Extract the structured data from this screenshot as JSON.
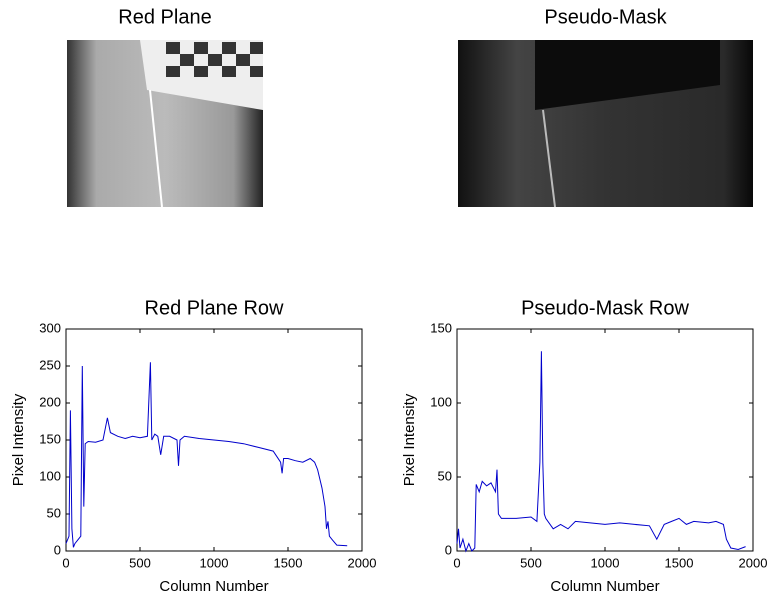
{
  "chart_data": [
    {
      "type": "image",
      "title": "Red Plane"
    },
    {
      "type": "image",
      "title": "Pseudo-Mask"
    },
    {
      "type": "line",
      "title": "Red Plane Row",
      "xlabel": "Column Number",
      "ylabel": "Pixel Intensity",
      "color": "#0000cc",
      "x": [
        0,
        20,
        30,
        40,
        50,
        60,
        80,
        100,
        110,
        120,
        130,
        150,
        200,
        250,
        280,
        300,
        350,
        400,
        450,
        500,
        550,
        570,
        580,
        600,
        620,
        640,
        660,
        700,
        750,
        760,
        770,
        800,
        900,
        1000,
        1100,
        1200,
        1300,
        1400,
        1450,
        1460,
        1470,
        1500,
        1550,
        1600,
        1650,
        1680,
        1700,
        1730,
        1750,
        1760,
        1770,
        1780,
        1800,
        1830,
        1900
      ],
      "values": [
        10,
        20,
        190,
        30,
        5,
        10,
        15,
        20,
        250,
        60,
        145,
        148,
        147,
        150,
        180,
        160,
        155,
        152,
        155,
        153,
        155,
        255,
        150,
        158,
        155,
        130,
        155,
        155,
        150,
        115,
        150,
        155,
        152,
        150,
        148,
        145,
        140,
        135,
        120,
        105,
        125,
        125,
        122,
        120,
        125,
        120,
        110,
        85,
        60,
        30,
        40,
        20,
        15,
        8,
        7
      ],
      "xlim": [
        0,
        2000
      ],
      "ylim": [
        0,
        300
      ],
      "xticks": [
        0,
        500,
        1000,
        1500,
        2000
      ],
      "yticks": [
        0,
        50,
        100,
        150,
        200,
        250,
        300
      ]
    },
    {
      "type": "line",
      "title": "Pseudo-Mask Row",
      "xlabel": "Column Number",
      "ylabel": "Pixel Intensity",
      "color": "#0000cc",
      "x": [
        0,
        10,
        20,
        40,
        60,
        80,
        100,
        120,
        130,
        150,
        170,
        200,
        230,
        260,
        270,
        280,
        300,
        400,
        500,
        540,
        560,
        570,
        580,
        590,
        600,
        650,
        700,
        750,
        800,
        900,
        1000,
        1100,
        1200,
        1300,
        1350,
        1400,
        1450,
        1500,
        1550,
        1600,
        1700,
        1750,
        1800,
        1820,
        1850,
        1900,
        1950
      ],
      "values": [
        5,
        15,
        2,
        8,
        0,
        5,
        0,
        2,
        45,
        40,
        47,
        44,
        46,
        40,
        55,
        25,
        22,
        22,
        23,
        20,
        60,
        135,
        60,
        25,
        22,
        15,
        18,
        15,
        20,
        19,
        18,
        19,
        18,
        17,
        8,
        18,
        20,
        22,
        18,
        20,
        19,
        20,
        18,
        8,
        2,
        1,
        3
      ],
      "xlim": [
        0,
        2000
      ],
      "ylim": [
        0,
        150
      ],
      "xticks": [
        0,
        500,
        1000,
        1500,
        2000
      ],
      "yticks": [
        0,
        50,
        100,
        150
      ]
    }
  ]
}
